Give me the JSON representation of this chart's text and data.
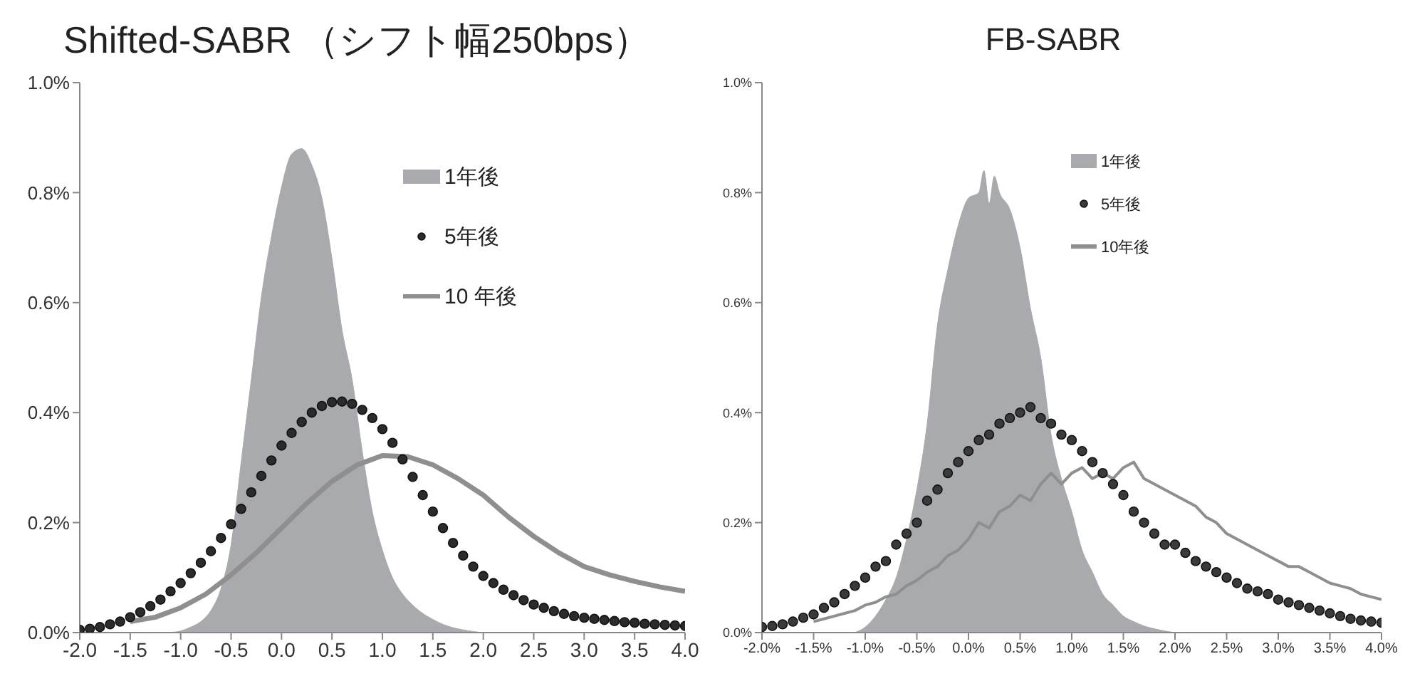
{
  "chart_data": [
    {
      "type": "area",
      "title": "Shifted-SABR （シフト幅250bps）",
      "legend": "top",
      "xlim": [
        -2.0,
        4.0
      ],
      "xticks": [
        {
          "value": -2.0,
          "label": "-2.0"
        },
        {
          "value": -1.5,
          "label": "-1.5"
        },
        {
          "value": -1.0,
          "label": "-1.0"
        },
        {
          "value": -0.5,
          "label": "-0.5"
        },
        {
          "value": 0,
          "label": "0.0"
        },
        {
          "value": 0.5,
          "label": "0.5"
        },
        {
          "value": 1.0,
          "label": "1.0"
        },
        {
          "value": 1.5,
          "label": "1.5"
        },
        {
          "value": 2.0,
          "label": "2.0"
        },
        {
          "value": 2.5,
          "label": "2.5"
        },
        {
          "value": 3.0,
          "label": "3.0"
        },
        {
          "value": 3.5,
          "label": "3.5"
        },
        {
          "value": 4.0,
          "label": "4.0"
        }
      ],
      "ylim": [
        0,
        1.0
      ],
      "yticks": [
        {
          "value": 0,
          "label": "0.0%"
        },
        {
          "value": 0.2,
          "label": "0.2%"
        },
        {
          "value": 0.4,
          "label": "0.4%"
        },
        {
          "value": 0.6,
          "label": "0.6%"
        },
        {
          "value": 0.8,
          "label": "0.8%"
        },
        {
          "value": 1.0,
          "label": "1.0%"
        }
      ],
      "series": [
        {
          "name": "1年後",
          "color": "#a9aaae",
          "x": [
            -1.1,
            -1.0,
            -0.9,
            -0.8,
            -0.7,
            -0.6,
            -0.5,
            -0.4,
            -0.3,
            -0.2,
            -0.1,
            0,
            0.1,
            0.2,
            0.3,
            0.4,
            0.5,
            0.6,
            0.7,
            0.8,
            0.9,
            1.0,
            1.1,
            1.2,
            1.3,
            1.4,
            1.5,
            1.6,
            1.7,
            1.8,
            1.9,
            2.0
          ],
          "values": [
            0,
            0.003,
            0.01,
            0.02,
            0.04,
            0.08,
            0.16,
            0.31,
            0.46,
            0.61,
            0.72,
            0.81,
            0.87,
            0.88,
            0.85,
            0.79,
            0.68,
            0.55,
            0.46,
            0.33,
            0.22,
            0.15,
            0.1,
            0.07,
            0.05,
            0.035,
            0.024,
            0.015,
            0.009,
            0.005,
            0.002,
            0
          ]
        },
        {
          "name": "5年後",
          "type": "scatter",
          "marker": "circle",
          "color": "#2b2b2b",
          "x": [
            -2.0,
            -1.9,
            -1.8,
            -1.7,
            -1.6,
            -1.5,
            -1.4,
            -1.3,
            -1.2,
            -1.1,
            -1.0,
            -0.9,
            -0.8,
            -0.7,
            -0.6,
            -0.5,
            -0.4,
            -0.3,
            -0.2,
            -0.1,
            0,
            0.1,
            0.2,
            0.3,
            0.4,
            0.5,
            0.6,
            0.7,
            0.8,
            0.9,
            1.0,
            1.1,
            1.2,
            1.3,
            1.4,
            1.5,
            1.6,
            1.7,
            1.8,
            1.9,
            2.0,
            2.1,
            2.2,
            2.3,
            2.4,
            2.5,
            2.6,
            2.7,
            2.8,
            2.9,
            3.0,
            3.1,
            3.2,
            3.3,
            3.4,
            3.5,
            3.6,
            3.7,
            3.8,
            3.9,
            4.0
          ],
          "values": [
            0.005,
            0.007,
            0.01,
            0.015,
            0.02,
            0.028,
            0.037,
            0.048,
            0.06,
            0.075,
            0.09,
            0.108,
            0.127,
            0.148,
            0.172,
            0.197,
            0.225,
            0.255,
            0.285,
            0.313,
            0.34,
            0.363,
            0.383,
            0.4,
            0.412,
            0.419,
            0.42,
            0.416,
            0.405,
            0.39,
            0.37,
            0.345,
            0.315,
            0.283,
            0.25,
            0.22,
            0.19,
            0.163,
            0.14,
            0.12,
            0.103,
            0.09,
            0.078,
            0.068,
            0.059,
            0.051,
            0.045,
            0.039,
            0.034,
            0.03,
            0.027,
            0.025,
            0.023,
            0.021,
            0.019,
            0.018,
            0.016,
            0.015,
            0.014,
            0.013,
            0.012
          ]
        },
        {
          "name": "10 年後",
          "type": "line",
          "color": "#8f8f8f",
          "x": [
            -1.5,
            -1.25,
            -1.0,
            -0.75,
            -0.5,
            -0.25,
            0,
            0.25,
            0.5,
            0.75,
            1.0,
            1.25,
            1.5,
            1.75,
            2.0,
            2.25,
            2.5,
            2.75,
            3.0,
            3.25,
            3.5,
            3.75,
            4.0
          ],
          "values": [
            0.02,
            0.028,
            0.045,
            0.07,
            0.105,
            0.145,
            0.19,
            0.235,
            0.275,
            0.305,
            0.322,
            0.32,
            0.305,
            0.28,
            0.25,
            0.21,
            0.175,
            0.145,
            0.12,
            0.105,
            0.093,
            0.083,
            0.075
          ]
        }
      ]
    },
    {
      "type": "area",
      "title": "FB-SABR",
      "legend": "top",
      "xlim": [
        -2.0,
        4.0
      ],
      "xticks": [
        {
          "value": -2.0,
          "label": "-2.0%"
        },
        {
          "value": -1.5,
          "label": "-1.5%"
        },
        {
          "value": -1.0,
          "label": "-1.0%"
        },
        {
          "value": -0.5,
          "label": "-0.5%"
        },
        {
          "value": 0,
          "label": "0.0%"
        },
        {
          "value": 0.5,
          "label": "0.5%"
        },
        {
          "value": 1.0,
          "label": "1.0%"
        },
        {
          "value": 1.5,
          "label": "1.5%"
        },
        {
          "value": 2.0,
          "label": "2.0%"
        },
        {
          "value": 2.5,
          "label": "2.5%"
        },
        {
          "value": 3.0,
          "label": "3.0%"
        },
        {
          "value": 3.5,
          "label": "3.5%"
        },
        {
          "value": 4.0,
          "label": "4.0%"
        }
      ],
      "ylim": [
        0,
        1.0
      ],
      "yticks": [
        {
          "value": 0,
          "label": "0.0%"
        },
        {
          "value": 0.2,
          "label": "0.2%"
        },
        {
          "value": 0.4,
          "label": "0.4%"
        },
        {
          "value": 0.6,
          "label": "0.6%"
        },
        {
          "value": 0.8,
          "label": "0.8%"
        },
        {
          "value": 1.0,
          "label": "1.0%"
        }
      ],
      "series": [
        {
          "name": "1年後",
          "color": "#a9aaae",
          "x": [
            -1.1,
            -1.0,
            -0.9,
            -0.8,
            -0.7,
            -0.6,
            -0.5,
            -0.4,
            -0.3,
            -0.2,
            -0.1,
            0,
            0.1,
            0.15,
            0.2,
            0.25,
            0.3,
            0.4,
            0.5,
            0.6,
            0.7,
            0.8,
            0.9,
            1.0,
            1.1,
            1.2,
            1.3,
            1.4,
            1.5,
            1.6,
            1.7,
            1.8,
            1.9,
            2.0
          ],
          "values": [
            0,
            0.01,
            0.03,
            0.06,
            0.1,
            0.17,
            0.26,
            0.38,
            0.56,
            0.66,
            0.74,
            0.79,
            0.8,
            0.84,
            0.78,
            0.83,
            0.8,
            0.77,
            0.7,
            0.59,
            0.5,
            0.36,
            0.28,
            0.22,
            0.15,
            0.11,
            0.07,
            0.05,
            0.03,
            0.02,
            0.012,
            0.007,
            0.003,
            0
          ]
        },
        {
          "name": "5年後",
          "type": "scatter",
          "marker": "circle",
          "color": "#3a3a3a",
          "x": [
            -2.0,
            -1.9,
            -1.8,
            -1.7,
            -1.6,
            -1.5,
            -1.4,
            -1.3,
            -1.2,
            -1.1,
            -1.0,
            -0.9,
            -0.8,
            -0.7,
            -0.6,
            -0.5,
            -0.4,
            -0.3,
            -0.2,
            -0.1,
            0,
            0.1,
            0.2,
            0.3,
            0.4,
            0.5,
            0.6,
            0.7,
            0.8,
            0.9,
            1.0,
            1.1,
            1.2,
            1.3,
            1.4,
            1.5,
            1.6,
            1.7,
            1.8,
            1.9,
            2.0,
            2.1,
            2.2,
            2.3,
            2.4,
            2.5,
            2.6,
            2.7,
            2.8,
            2.9,
            3.0,
            3.1,
            3.2,
            3.3,
            3.4,
            3.5,
            3.6,
            3.7,
            3.8,
            3.9,
            4.0
          ],
          "values": [
            0.01,
            0.012,
            0.015,
            0.02,
            0.027,
            0.033,
            0.045,
            0.055,
            0.07,
            0.085,
            0.1,
            0.12,
            0.13,
            0.16,
            0.18,
            0.2,
            0.24,
            0.26,
            0.29,
            0.31,
            0.33,
            0.35,
            0.36,
            0.38,
            0.39,
            0.4,
            0.41,
            0.39,
            0.38,
            0.36,
            0.35,
            0.33,
            0.31,
            0.29,
            0.27,
            0.25,
            0.22,
            0.2,
            0.18,
            0.16,
            0.16,
            0.145,
            0.13,
            0.12,
            0.11,
            0.1,
            0.09,
            0.08,
            0.075,
            0.07,
            0.06,
            0.055,
            0.05,
            0.045,
            0.04,
            0.035,
            0.03,
            0.025,
            0.022,
            0.02,
            0.018
          ]
        },
        {
          "name": "10年後",
          "type": "line",
          "color": "#8f8f8f",
          "x": [
            -1.5,
            -1.4,
            -1.3,
            -1.2,
            -1.1,
            -1.0,
            -0.9,
            -0.8,
            -0.7,
            -0.6,
            -0.5,
            -0.4,
            -0.3,
            -0.2,
            -0.1,
            0,
            0.1,
            0.2,
            0.3,
            0.4,
            0.5,
            0.6,
            0.7,
            0.8,
            0.9,
            1.0,
            1.1,
            1.2,
            1.3,
            1.4,
            1.5,
            1.6,
            1.7,
            1.8,
            1.9,
            2.0,
            2.1,
            2.2,
            2.3,
            2.4,
            2.5,
            2.6,
            2.7,
            2.8,
            2.9,
            3.0,
            3.1,
            3.2,
            3.3,
            3.4,
            3.5,
            3.6,
            3.7,
            3.8,
            3.9,
            4.0
          ],
          "values": [
            0.02,
            0.025,
            0.03,
            0.035,
            0.04,
            0.05,
            0.055,
            0.065,
            0.07,
            0.085,
            0.095,
            0.11,
            0.12,
            0.14,
            0.15,
            0.17,
            0.2,
            0.19,
            0.22,
            0.23,
            0.25,
            0.24,
            0.27,
            0.29,
            0.27,
            0.29,
            0.3,
            0.28,
            0.29,
            0.28,
            0.3,
            0.31,
            0.28,
            0.27,
            0.26,
            0.25,
            0.24,
            0.23,
            0.21,
            0.2,
            0.18,
            0.17,
            0.16,
            0.15,
            0.14,
            0.13,
            0.12,
            0.12,
            0.11,
            0.1,
            0.09,
            0.085,
            0.08,
            0.07,
            0.065,
            0.06
          ]
        }
      ]
    }
  ]
}
